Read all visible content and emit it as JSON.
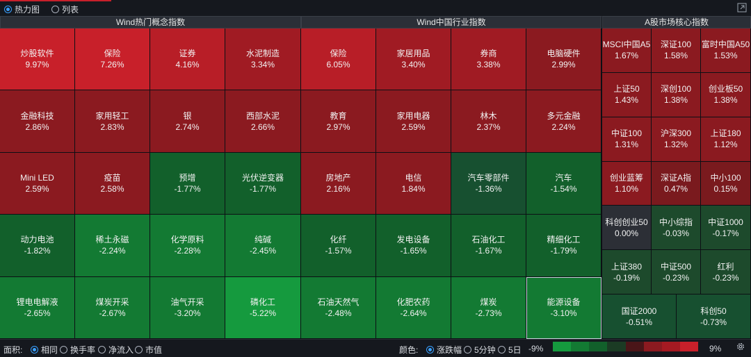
{
  "top": {
    "options": [
      {
        "label": "热力图",
        "selected": true
      },
      {
        "label": "列表",
        "selected": false
      }
    ]
  },
  "sections": [
    {
      "title": "Wind热门概念指数",
      "tiles": [
        {
          "name": "炒股软件",
          "pct": "9.97%",
          "value": 9.97
        },
        {
          "name": "保险",
          "pct": "7.26%",
          "value": 7.26
        },
        {
          "name": "证券",
          "pct": "4.16%",
          "value": 4.16
        },
        {
          "name": "水泥制造",
          "pct": "3.34%",
          "value": 3.34
        },
        {
          "name": "金融科技",
          "pct": "2.86%",
          "value": 2.86
        },
        {
          "name": "家用轻工",
          "pct": "2.83%",
          "value": 2.83
        },
        {
          "name": "银",
          "pct": "2.74%",
          "value": 2.74
        },
        {
          "name": "西部水泥",
          "pct": "2.66%",
          "value": 2.66
        },
        {
          "name": "Mini LED",
          "pct": "2.59%",
          "value": 2.59
        },
        {
          "name": "疫苗",
          "pct": "2.58%",
          "value": 2.58
        },
        {
          "name": "预增",
          "pct": "-1.77%",
          "value": -1.77
        },
        {
          "name": "光伏逆变器",
          "pct": "-1.77%",
          "value": -1.77
        },
        {
          "name": "动力电池",
          "pct": "-1.82%",
          "value": -1.82
        },
        {
          "name": "稀土永磁",
          "pct": "-2.24%",
          "value": -2.24
        },
        {
          "name": "化学原料",
          "pct": "-2.28%",
          "value": -2.28
        },
        {
          "name": "纯碱",
          "pct": "-2.45%",
          "value": -2.45
        },
        {
          "name": "锂电电解液",
          "pct": "-2.65%",
          "value": -2.65
        },
        {
          "name": "煤炭开采",
          "pct": "-2.67%",
          "value": -2.67
        },
        {
          "name": "油气开采",
          "pct": "-3.20%",
          "value": -3.2
        },
        {
          "name": "磷化工",
          "pct": "-5.22%",
          "value": -5.22
        }
      ]
    },
    {
      "title": "Wind中国行业指数",
      "tiles": [
        {
          "name": "保险",
          "pct": "6.05%",
          "value": 6.05
        },
        {
          "name": "家居用品",
          "pct": "3.40%",
          "value": 3.4
        },
        {
          "name": "券商",
          "pct": "3.38%",
          "value": 3.38
        },
        {
          "name": "电脑硬件",
          "pct": "2.99%",
          "value": 2.99
        },
        {
          "name": "教育",
          "pct": "2.97%",
          "value": 2.97
        },
        {
          "name": "家用电器",
          "pct": "2.59%",
          "value": 2.59
        },
        {
          "name": "林木",
          "pct": "2.37%",
          "value": 2.37
        },
        {
          "name": "多元金融",
          "pct": "2.24%",
          "value": 2.24
        },
        {
          "name": "房地产",
          "pct": "2.16%",
          "value": 2.16
        },
        {
          "name": "电信",
          "pct": "1.84%",
          "value": 1.84
        },
        {
          "name": "汽车零部件",
          "pct": "-1.36%",
          "value": -1.36
        },
        {
          "name": "汽车",
          "pct": "-1.54%",
          "value": -1.54
        },
        {
          "name": "化纤",
          "pct": "-1.57%",
          "value": -1.57
        },
        {
          "name": "发电设备",
          "pct": "-1.65%",
          "value": -1.65
        },
        {
          "name": "石油化工",
          "pct": "-1.67%",
          "value": -1.67
        },
        {
          "name": "精细化工",
          "pct": "-1.79%",
          "value": -1.79
        },
        {
          "name": "石油天然气",
          "pct": "-2.48%",
          "value": -2.48
        },
        {
          "name": "化肥农药",
          "pct": "-2.64%",
          "value": -2.64
        },
        {
          "name": "煤炭",
          "pct": "-2.73%",
          "value": -2.73
        },
        {
          "name": "能源设备",
          "pct": "-3.10%",
          "value": -3.1,
          "selected": true
        }
      ]
    },
    {
      "title": "A股市场核心指数",
      "tiles": [
        {
          "name": "MSCI中国A5",
          "pct": "1.67%",
          "value": 1.67
        },
        {
          "name": "深证100",
          "pct": "1.58%",
          "value": 1.58
        },
        {
          "name": "富时中国A50",
          "pct": "1.53%",
          "value": 1.53
        },
        {
          "name": "上证50",
          "pct": "1.43%",
          "value": 1.43
        },
        {
          "name": "深创100",
          "pct": "1.38%",
          "value": 1.38
        },
        {
          "name": "创业板50",
          "pct": "1.38%",
          "value": 1.38
        },
        {
          "name": "中证100",
          "pct": "1.31%",
          "value": 1.31
        },
        {
          "name": "沪深300",
          "pct": "1.32%",
          "value": 1.32
        },
        {
          "name": "上证180",
          "pct": "1.12%",
          "value": 1.12
        },
        {
          "name": "创业蓝筹",
          "pct": "1.10%",
          "value": 1.1
        },
        {
          "name": "深证A指",
          "pct": "0.47%",
          "value": 0.47
        },
        {
          "name": "中小100",
          "pct": "0.15%",
          "value": 0.15
        },
        {
          "name": "科创创业50",
          "pct": "0.00%",
          "value": 0.0
        },
        {
          "name": "中小综指",
          "pct": "-0.03%",
          "value": -0.03
        },
        {
          "name": "中证1000",
          "pct": "-0.17%",
          "value": -0.17
        },
        {
          "name": "上证380",
          "pct": "-0.19%",
          "value": -0.19
        },
        {
          "name": "中证500",
          "pct": "-0.23%",
          "value": -0.23
        },
        {
          "name": "红利",
          "pct": "-0.23%",
          "value": -0.23
        },
        {
          "name": "国证2000",
          "pct": "-0.51%",
          "value": -0.51
        },
        {
          "name": "科创50",
          "pct": "-0.73%",
          "value": -0.73
        }
      ]
    }
  ],
  "bottom": {
    "area_label": "面积:",
    "area_options": [
      {
        "label": "相同",
        "selected": true
      },
      {
        "label": "换手率",
        "selected": false
      },
      {
        "label": "净流入",
        "selected": false
      },
      {
        "label": "市值",
        "selected": false
      }
    ],
    "color_label": "颜色:",
    "color_options": [
      {
        "label": "涨跌幅",
        "selected": true
      },
      {
        "label": "5分钟",
        "selected": false
      },
      {
        "label": "5日",
        "selected": false
      }
    ],
    "legend_min": "-9%",
    "legend_max": "9%",
    "legend_colors": [
      "#159a3e",
      "#137a33",
      "#12602b",
      "#1b3b24",
      "#4a1518",
      "#8b1a20",
      "#a51a22",
      "#c8202a"
    ]
  }
}
